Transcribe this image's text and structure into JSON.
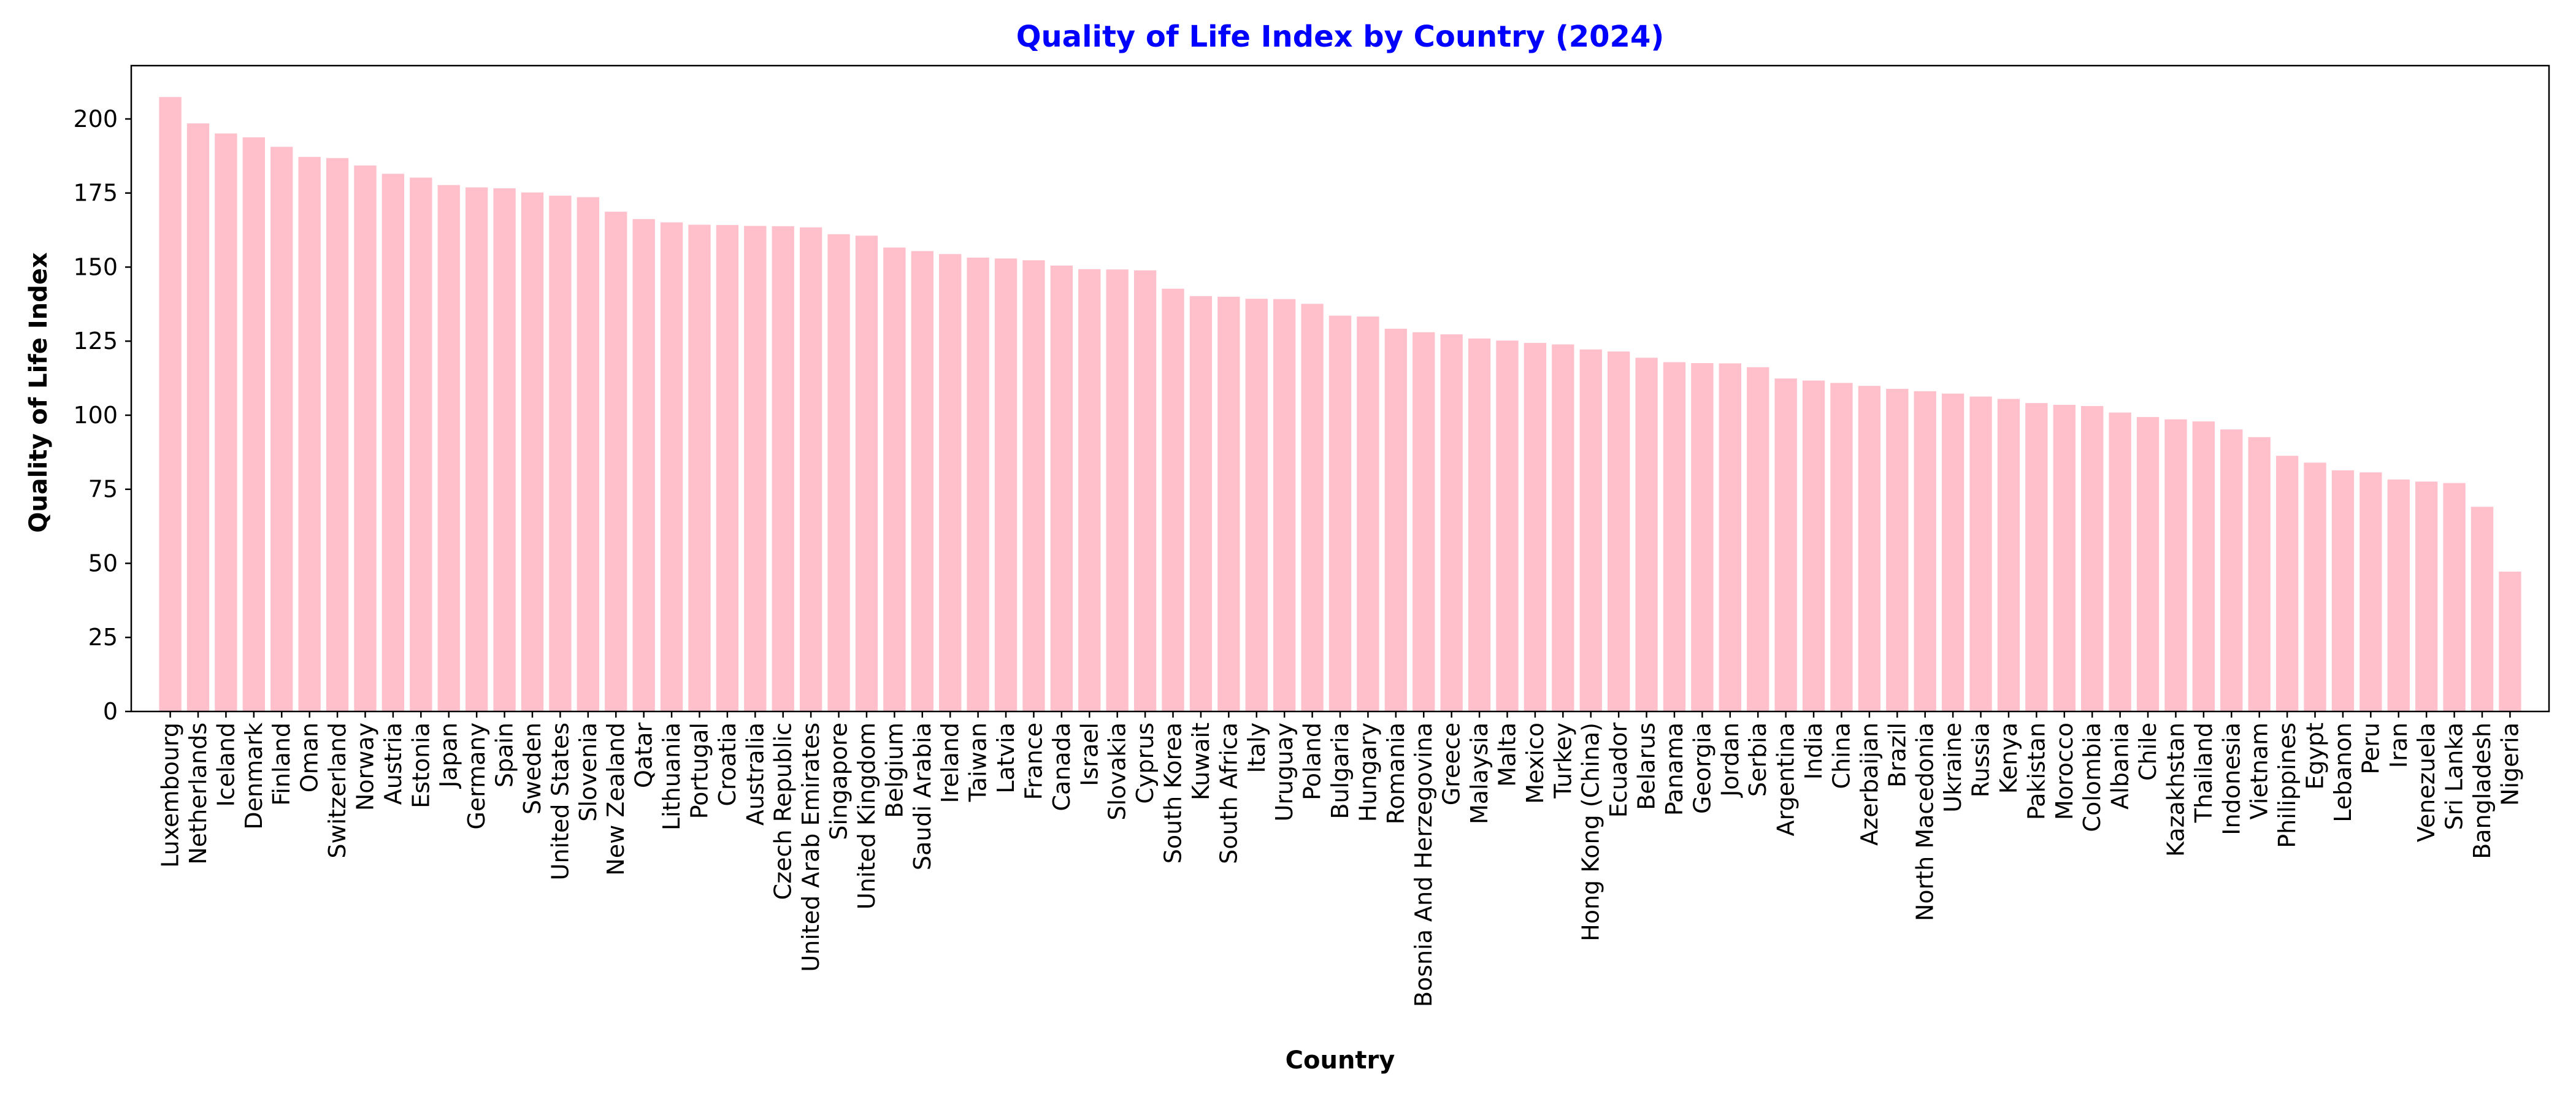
{
  "chart_data": {
    "type": "bar",
    "title": "Quality of Life Index by Country (2024)",
    "xlabel": "Country",
    "ylabel": "Quality of Life Index",
    "ylim": [
      0,
      218
    ],
    "yticks": [
      0,
      25,
      50,
      75,
      100,
      125,
      150,
      175,
      200
    ],
    "grid": false,
    "legend": "none",
    "colors": {
      "bar": "#ffc0cb",
      "title": "#0000ff",
      "axis": "#000000"
    },
    "categories": [
      "Luxembourg",
      "Netherlands",
      "Iceland",
      "Denmark",
      "Finland",
      "Oman",
      "Switzerland",
      "Norway",
      "Austria",
      "Estonia",
      "Japan",
      "Germany",
      "Spain",
      "Sweden",
      "United States",
      "Slovenia",
      "New Zealand",
      "Qatar",
      "Lithuania",
      "Portugal",
      "Croatia",
      "Australia",
      "Czech Republic",
      "United Arab Emirates",
      "Singapore",
      "United Kingdom",
      "Belgium",
      "Saudi Arabia",
      "Ireland",
      "Taiwan",
      "Latvia",
      "France",
      "Canada",
      "Israel",
      "Slovakia",
      "Cyprus",
      "South Korea",
      "Kuwait",
      "South Africa",
      "Italy",
      "Uruguay",
      "Poland",
      "Bulgaria",
      "Hungary",
      "Romania",
      "Bosnia And Herzegovina",
      "Greece",
      "Malaysia",
      "Malta",
      "Mexico",
      "Turkey",
      "Hong Kong (China)",
      "Ecuador",
      "Belarus",
      "Panama",
      "Georgia",
      "Jordan",
      "Serbia",
      "Argentina",
      "India",
      "China",
      "Azerbaijan",
      "Brazil",
      "North Macedonia",
      "Ukraine",
      "Russia",
      "Kenya",
      "Pakistan",
      "Morocco",
      "Colombia",
      "Albania",
      "Chile",
      "Kazakhstan",
      "Thailand",
      "Indonesia",
      "Vietnam",
      "Philippines",
      "Egypt",
      "Lebanon",
      "Peru",
      "Iran",
      "Venezuela",
      "Sri Lanka",
      "Bangladesh",
      "Nigeria"
    ],
    "values": [
      207.4,
      198.5,
      195.1,
      193.8,
      190.6,
      187.2,
      186.8,
      184.3,
      181.5,
      180.2,
      177.7,
      176.9,
      176.6,
      175.2,
      174.1,
      173.6,
      168.7,
      166.2,
      165.1,
      164.3,
      164.2,
      163.9,
      163.8,
      163.4,
      161.1,
      160.6,
      156.6,
      155.4,
      154.4,
      153.2,
      152.9,
      152.3,
      150.5,
      149.3,
      149.2,
      148.9,
      142.7,
      140.2,
      140.0,
      139.3,
      139.2,
      137.6,
      133.6,
      133.3,
      129.2,
      128.0,
      127.3,
      125.9,
      125.2,
      124.4,
      123.9,
      122.2,
      121.5,
      119.4,
      117.9,
      117.6,
      117.5,
      116.2,
      112.4,
      111.7,
      110.9,
      109.9,
      108.9,
      108.1,
      107.3,
      106.3,
      105.5,
      104.1,
      103.5,
      103.1,
      100.9,
      99.4,
      98.6,
      97.9,
      95.2,
      92.6,
      86.3,
      84.0,
      81.4,
      80.7,
      78.3,
      77.6,
      77.1,
      69.1,
      47.2
    ]
  }
}
